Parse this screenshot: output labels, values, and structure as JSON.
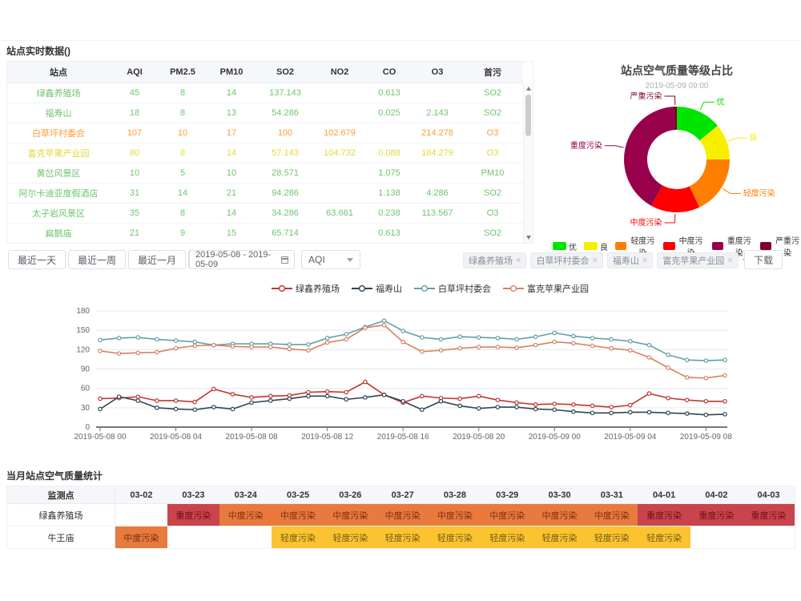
{
  "colors": {
    "rt_good": "#6fc46f",
    "rt_fine": "#e0da39",
    "rt_light": "#ff9c33",
    "m_severe_bg": "#c9444d",
    "m_severe_fg": "#6e1016",
    "m_moderate_bg": "#e87a3e",
    "m_moderate_fg": "#7c2d0c",
    "m_light_bg": "#fcc331",
    "m_light_fg": "#6f5a10"
  },
  "realtime": {
    "title": "站点实时数据()",
    "columns": [
      "站点",
      "AQI",
      "PM2.5",
      "PM10",
      "SO2",
      "NO2",
      "CO",
      "O3",
      "首污"
    ],
    "rows": [
      {
        "level": "good",
        "cells": [
          "绿鑫养殖场",
          "45",
          "8",
          "14",
          "137.143",
          "",
          "0.613",
          "",
          "SO2"
        ]
      },
      {
        "level": "good",
        "cells": [
          "福寿山",
          "18",
          "8",
          "13",
          "54.286",
          "",
          "0.025",
          "2.143",
          "SO2"
        ]
      },
      {
        "level": "light",
        "cells": [
          "白草坪村委会",
          "107",
          "10",
          "17",
          "100",
          "102.679",
          "",
          "214.278",
          "O3"
        ]
      },
      {
        "level": "fine",
        "cells": [
          "富克苹果产业园",
          "80",
          "8",
          "14",
          "57.143",
          "104.732",
          "0.088",
          "184.279",
          "O3"
        ]
      },
      {
        "level": "good",
        "cells": [
          "黄岔风景区",
          "10",
          "5",
          "10",
          "28.571",
          "",
          "1.075",
          "",
          "PM10"
        ]
      },
      {
        "level": "good",
        "cells": [
          "阿尔卡迪亚度假酒店",
          "31",
          "14",
          "21",
          "94.286",
          "",
          "1.138",
          "4.286",
          "SO2"
        ]
      },
      {
        "level": "good",
        "cells": [
          "太子岩风景区",
          "35",
          "8",
          "14",
          "34.286",
          "63.661",
          "0.238",
          "113.567",
          "O3"
        ]
      },
      {
        "level": "good",
        "cells": [
          "扁鹊庙",
          "21",
          "9",
          "15",
          "65.714",
          "",
          "0.613",
          "",
          "SO2"
        ]
      }
    ]
  },
  "filters": {
    "quick_ranges": [
      "最近一天",
      "最近一周",
      "最近一月",
      "最近一年"
    ],
    "date_range": "2019-05-08 - 2019-05-09",
    "metric": "AQI",
    "selected_stations": [
      "绿鑫养殖场",
      "白草坪村委会",
      "福寿山",
      "富克苹果产业园"
    ],
    "download_label": "下载"
  },
  "chart_data": [
    {
      "type": "pie",
      "title": "站点空气质量等级占比",
      "subtitle": "2019-05-09 09:00",
      "legend_position": "bottom",
      "slices": [
        {
          "name": "优",
          "value": 14,
          "color": "#00e400"
        },
        {
          "name": "良",
          "value": 11,
          "color": "#f7ee00"
        },
        {
          "name": "轻度污染",
          "value": 18,
          "color": "#ff7e00"
        },
        {
          "name": "中度污染",
          "value": 15,
          "color": "#ff0000"
        },
        {
          "name": "重度污染",
          "value": 41,
          "color": "#99004c"
        },
        {
          "name": "严重污染",
          "value": 1,
          "color": "#7e0023"
        }
      ]
    },
    {
      "type": "line",
      "x_start": "2019-05-08 00:00",
      "x_step_hours": 1,
      "x_tick_labels": [
        "2019-05-08 00",
        "2019-05-08 04",
        "2019-05-08 08",
        "2019-05-08 12",
        "2019-05-08 16",
        "2019-05-08 20",
        "2019-05-09 00",
        "2019-05-09 04",
        "2019-05-09 08"
      ],
      "tick_every": 4,
      "ylim": [
        0,
        180
      ],
      "y_ticks": [
        0,
        30,
        60,
        90,
        120,
        150,
        180
      ],
      "grid": true,
      "legend_position": "top",
      "series": [
        {
          "name": "绿鑫养殖场",
          "color": "#c23531",
          "values": [
            44,
            45,
            47,
            41,
            41,
            39,
            59,
            51,
            46,
            48,
            49,
            54,
            55,
            54,
            70,
            50,
            38,
            48,
            45,
            44,
            48,
            42,
            38,
            35,
            36,
            35,
            33,
            31,
            34,
            52,
            45,
            42,
            40,
            40
          ]
        },
        {
          "name": "福寿山",
          "color": "#2f4554",
          "values": [
            28,
            47,
            41,
            30,
            28,
            27,
            31,
            28,
            38,
            41,
            44,
            48,
            48,
            43,
            46,
            50,
            40,
            27,
            40,
            33,
            29,
            31,
            31,
            28,
            27,
            24,
            22,
            22,
            23,
            23,
            22,
            21,
            19,
            20
          ]
        },
        {
          "name": "白草坪村委会",
          "color": "#61a0a8",
          "values": [
            135,
            138,
            139,
            136,
            134,
            132,
            127,
            129,
            129,
            129,
            128,
            128,
            138,
            144,
            155,
            165,
            149,
            139,
            136,
            140,
            139,
            138,
            136,
            140,
            146,
            141,
            138,
            136,
            133,
            127,
            112,
            104,
            103,
            104
          ]
        },
        {
          "name": "富克苹果产业园",
          "color": "#d48265",
          "values": [
            118,
            114,
            115,
            116,
            122,
            126,
            127,
            125,
            124,
            124,
            121,
            119,
            131,
            136,
            154,
            158,
            132,
            117,
            119,
            122,
            124,
            124,
            123,
            127,
            132,
            130,
            126,
            122,
            119,
            108,
            92,
            77,
            76,
            80
          ]
        }
      ]
    }
  ],
  "monthly": {
    "title": "当月站点空气质量统计",
    "first_column": "监测点",
    "date_columns": [
      "03-02",
      "03-23",
      "03-24",
      "03-25",
      "03-26",
      "03-27",
      "03-28",
      "03-29",
      "03-30",
      "03-31",
      "04-01",
      "04-02",
      "04-03"
    ],
    "rows": [
      {
        "name": "绿鑫养殖场",
        "cells": [
          null,
          {
            "text": "重度污染",
            "level": "severe"
          },
          {
            "text": "中度污染",
            "level": "moderate"
          },
          {
            "text": "中度污染",
            "level": "moderate"
          },
          {
            "text": "中度污染",
            "level": "moderate"
          },
          {
            "text": "中度污染",
            "level": "moderate"
          },
          {
            "text": "中度污染",
            "level": "moderate"
          },
          {
            "text": "中度污染",
            "level": "moderate"
          },
          {
            "text": "中度污染",
            "level": "moderate"
          },
          {
            "text": "中度污染",
            "level": "moderate"
          },
          {
            "text": "重度污染",
            "level": "severe"
          },
          {
            "text": "重度污染",
            "level": "severe"
          },
          {
            "text": "重度污染",
            "level": "severe"
          }
        ]
      },
      {
        "name": "牛王庙",
        "cells": [
          {
            "text": "中度污染",
            "level": "moderate"
          },
          null,
          null,
          {
            "text": "轻度污染",
            "level": "light"
          },
          {
            "text": "轻度污染",
            "level": "light"
          },
          {
            "text": "轻度污染",
            "level": "light"
          },
          {
            "text": "轻度污染",
            "level": "light"
          },
          {
            "text": "轻度污染",
            "level": "light"
          },
          {
            "text": "轻度污染",
            "level": "light"
          },
          {
            "text": "轻度污染",
            "level": "light"
          },
          {
            "text": "轻度污染",
            "level": "light"
          },
          null,
          null
        ]
      }
    ]
  }
}
